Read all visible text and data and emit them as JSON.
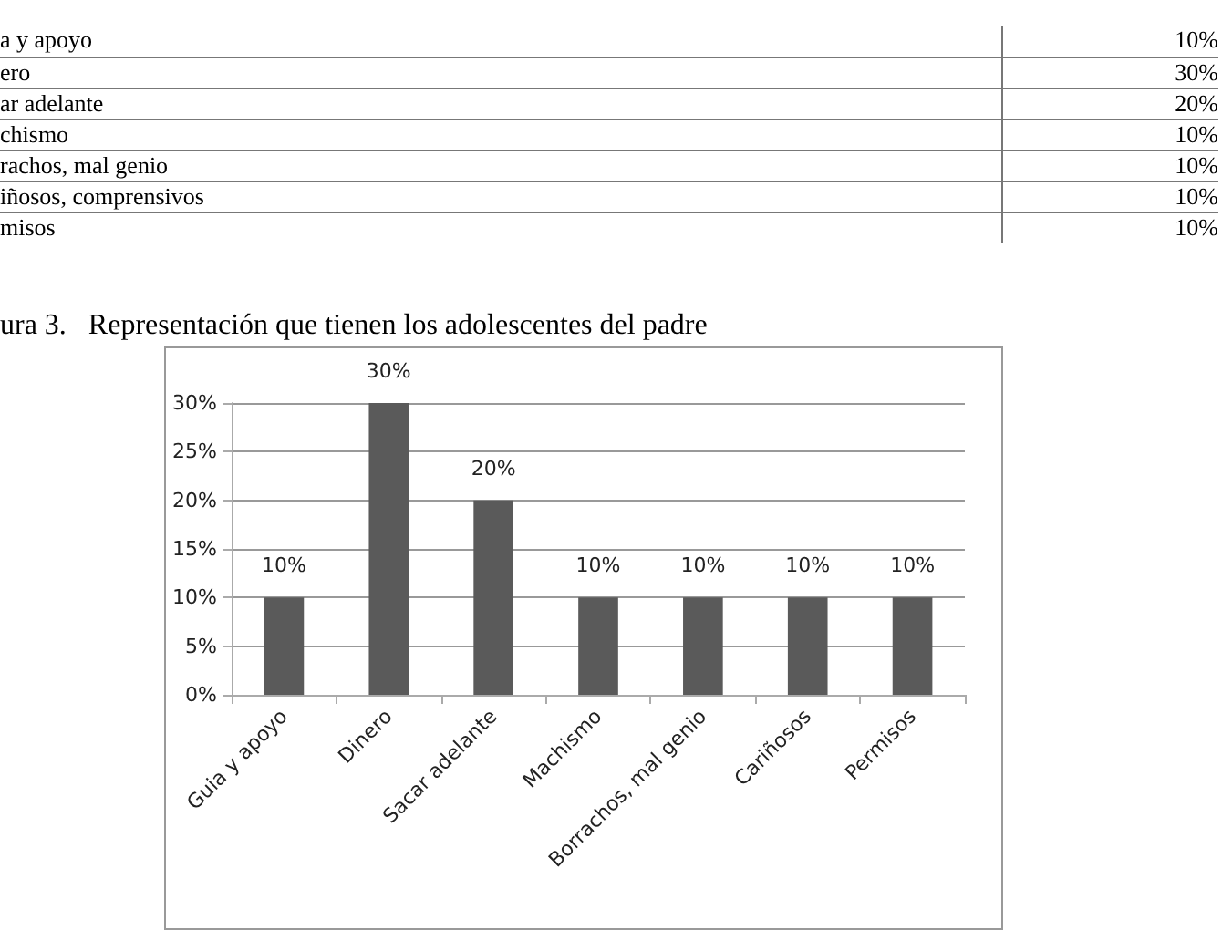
{
  "chart_data": {
    "type": "bar",
    "title": "ura 3.   Representación que tienen los adolescentes del padre",
    "categories": [
      "Guia y apoyo",
      "Dinero",
      "Sacar adelante",
      "Machismo",
      "Borrachos, mal genio",
      "Cariñosos",
      "Permisos"
    ],
    "values": [
      10,
      30,
      20,
      10,
      10,
      10,
      10
    ],
    "color": "#5a5a5a",
    "ylim": [
      0,
      30
    ],
    "yticks": [
      {
        "value": 0,
        "label": "0%"
      },
      {
        "value": 5,
        "label": "5%"
      },
      {
        "value": 10,
        "label": "10%"
      },
      {
        "value": 15,
        "label": "15%"
      },
      {
        "value": 20,
        "label": "20%"
      },
      {
        "value": 25,
        "label": "25%"
      },
      {
        "value": 30,
        "label": "30%"
      }
    ],
    "value_labels": [
      "10%",
      "30%",
      "20%",
      "10%",
      "10%",
      "10%",
      "10%"
    ],
    "grid": "y",
    "annotations": [
      "a y apoyo",
      "10%",
      "ero",
      "30%",
      "ar adelante",
      "20%",
      "chismo",
      "10%",
      "rachos, mal genio",
      "10%",
      "iñosos, comprensivos",
      "10%",
      "misos",
      "10%"
    ]
  }
}
